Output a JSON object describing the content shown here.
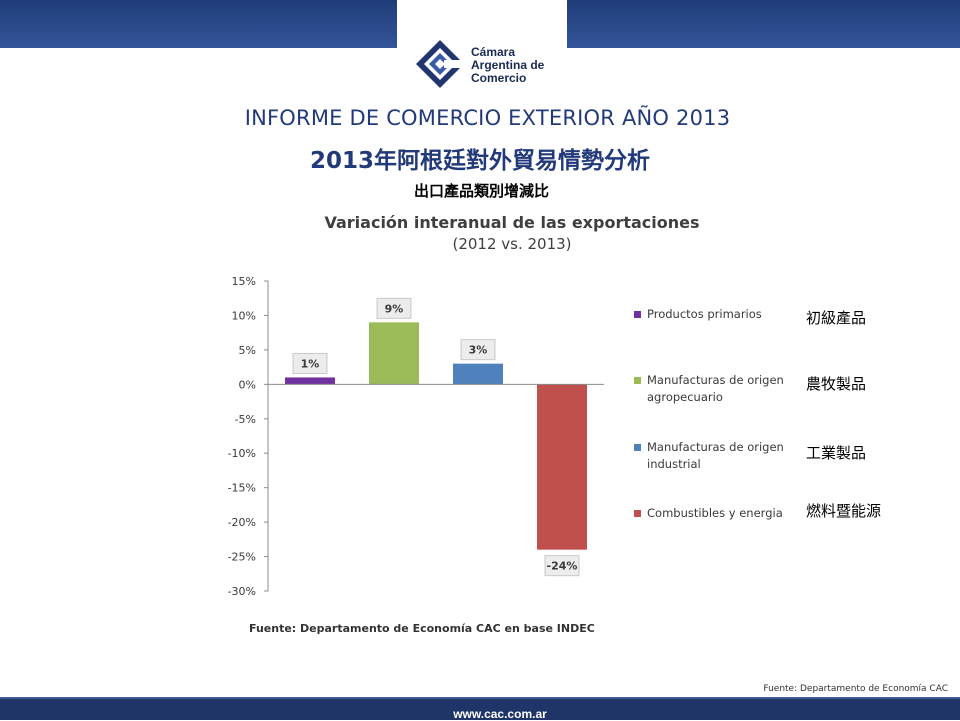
{
  "logo": {
    "line1": "Cámara",
    "line2": "Argentina de",
    "line3": "Comercio"
  },
  "header": {
    "title_es": "INFORME DE COMERCIO EXTERIOR AÑO 2013",
    "title_zh": "2013年阿根廷對外貿易情勢分析",
    "subtitle_zh": "出口產品類別增減比"
  },
  "colors": {
    "banner": "#1f3c78",
    "title": "#223a7a",
    "primarios": "#7030a0",
    "agro": "#9bbb59",
    "industrial": "#4f81bd",
    "combustibles": "#c0504d"
  },
  "chart_data": {
    "type": "bar",
    "title": "Variación interanual de las exportaciones",
    "subtitle": "(2012 vs. 2013)",
    "categories": [
      "Productos primarios",
      "Manufacturas de origen agropecuario",
      "Manufacturas de origen industrial",
      "Combustibles y energia"
    ],
    "values": [
      1,
      9,
      3,
      -24
    ],
    "data_labels": [
      "1%",
      "9%",
      "3%",
      "-24%"
    ],
    "colors": [
      "#7030a0",
      "#9bbb59",
      "#4f81bd",
      "#c0504d"
    ],
    "ylim": [
      -30,
      15
    ],
    "yticks": [
      15,
      10,
      5,
      0,
      -5,
      -10,
      -15,
      -20,
      -25,
      -30
    ],
    "ytick_labels": [
      "15%",
      "10%",
      "5%",
      "0%",
      "-5%",
      "-10%",
      "-15%",
      "-20%",
      "-25%",
      "-30%"
    ],
    "grid": false,
    "legend_position": "right",
    "legend": [
      {
        "label": "Productos primarios",
        "label_zh": "初級產品",
        "color": "#7030a0"
      },
      {
        "label": "Manufacturas de origen agropecuario",
        "label_zh": "農牧製品",
        "color": "#9bbb59"
      },
      {
        "label": "Manufacturas de origen industrial",
        "label_zh": "工業製品",
        "color": "#4f81bd"
      },
      {
        "label": "Combustibles y energia",
        "label_zh": "燃料暨能源",
        "color": "#c0504d"
      }
    ],
    "source": "Fuente: Departamento de Economía CAC en base  INDEC"
  },
  "footer": {
    "source": "Fuente: Departamento de Economía CAC",
    "website": "www.cac.com.ar"
  }
}
